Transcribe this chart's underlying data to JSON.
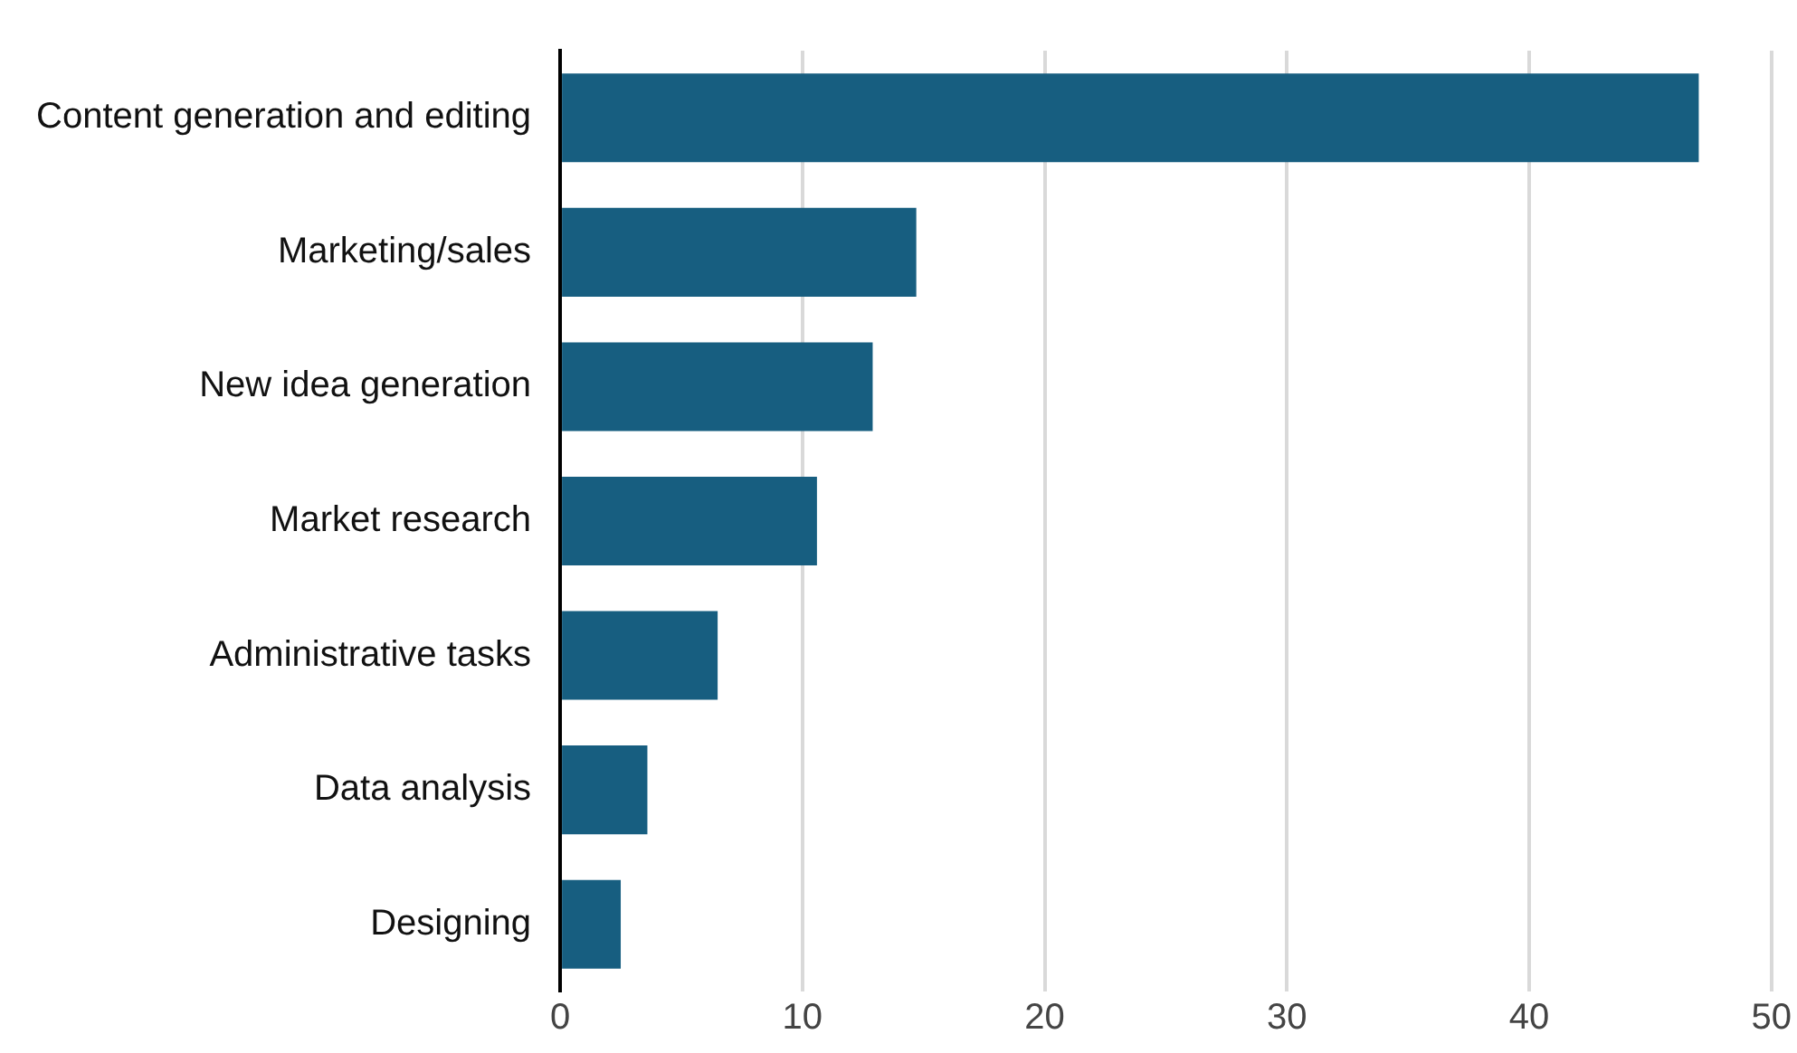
{
  "chart_data": {
    "type": "bar",
    "orientation": "horizontal",
    "categories": [
      "Content generation and editing",
      "Marketing/sales",
      "New idea generation",
      "Market research",
      "Administrative tasks",
      "Data analysis",
      "Designing"
    ],
    "values": [
      47,
      14.7,
      12.9,
      10.6,
      6.5,
      3.6,
      2.5
    ],
    "color": "#175e80",
    "xlim": [
      0,
      50
    ],
    "xticks": [
      0,
      10,
      20,
      30,
      40,
      50
    ],
    "grid": "x",
    "legend": false
  }
}
